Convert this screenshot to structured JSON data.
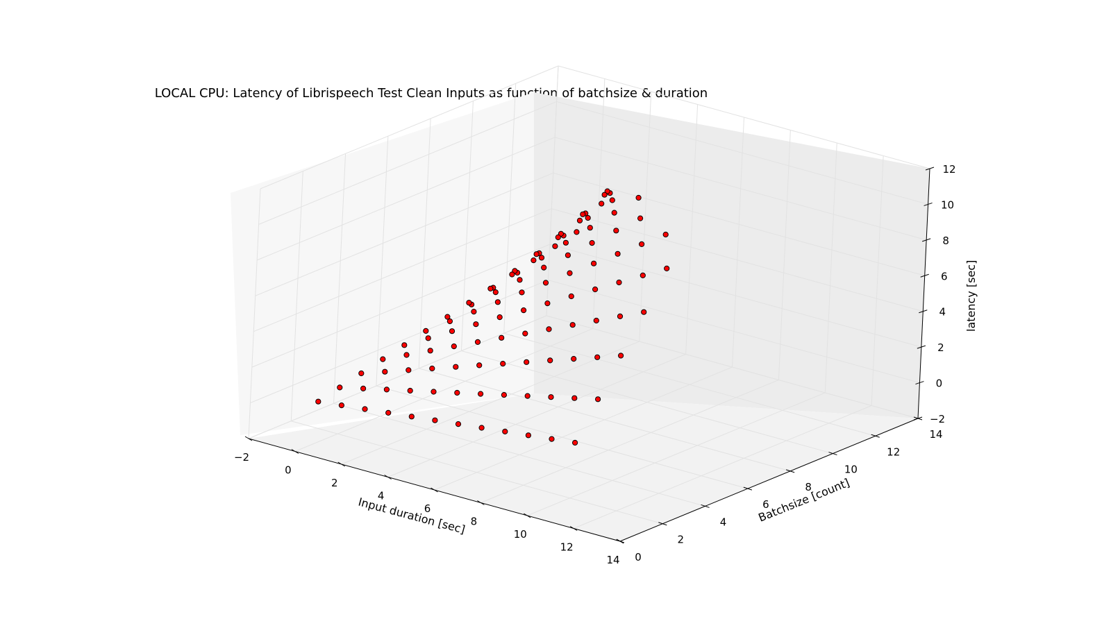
{
  "chart_data": {
    "type": "scatter",
    "projection": "3d",
    "title": "LOCAL CPU: Latency of Librispeech Test Clean Inputs as function of batchsize & duration",
    "xlabel": "Input duration [sec]",
    "ylabel": "Batchsize [count]",
    "zlabel": "latency [sec]",
    "xlim": [
      -2,
      14
    ],
    "ylim": [
      0,
      14
    ],
    "zlim": [
      -2,
      12
    ],
    "xticks": [
      "−2",
      "0",
      "2",
      "4",
      "6",
      "8",
      "10",
      "12",
      "14"
    ],
    "yticks": [
      "0",
      "2",
      "4",
      "6",
      "8",
      "10",
      "12",
      "14"
    ],
    "zticks": [
      "−2",
      "0",
      "2",
      "4",
      "6",
      "8",
      "10",
      "12"
    ],
    "grid": true,
    "marker_color": "#ff0000",
    "marker_edge": "#000000",
    "pane_colors": [
      "#f2f2f2",
      "#ececec",
      "#f7f7f7"
    ],
    "series": [
      {
        "points": [
          [
            0,
            1,
            0.3
          ],
          [
            1,
            1,
            0.45
          ],
          [
            2,
            1,
            0.6
          ],
          [
            3,
            1,
            0.75
          ],
          [
            4,
            1,
            0.9
          ],
          [
            5,
            1,
            1.05
          ],
          [
            6,
            1,
            1.2
          ],
          [
            7,
            1,
            1.35
          ],
          [
            8,
            1,
            1.5
          ],
          [
            9,
            1,
            1.65
          ],
          [
            10,
            1,
            1.8
          ],
          [
            11,
            1,
            1.95
          ],
          [
            0,
            2,
            0.6
          ],
          [
            1,
            2,
            0.9
          ],
          [
            2,
            2,
            1.2
          ],
          [
            3,
            2,
            1.5
          ],
          [
            4,
            2,
            1.8
          ],
          [
            5,
            2,
            2.1
          ],
          [
            6,
            2,
            2.4
          ],
          [
            7,
            2,
            2.7
          ],
          [
            8,
            2,
            3.0
          ],
          [
            9,
            2,
            3.3
          ],
          [
            10,
            2,
            3.6
          ],
          [
            11,
            2,
            3.9
          ],
          [
            0,
            3,
            0.9
          ],
          [
            1,
            3,
            1.35
          ],
          [
            2,
            3,
            1.8
          ],
          [
            3,
            3,
            2.25
          ],
          [
            4,
            3,
            2.7
          ],
          [
            5,
            3,
            3.15
          ],
          [
            6,
            3,
            3.6
          ],
          [
            7,
            3,
            4.05
          ],
          [
            8,
            3,
            4.5
          ],
          [
            9,
            3,
            4.95
          ],
          [
            10,
            3,
            5.4
          ],
          [
            11,
            3,
            5.85
          ],
          [
            0,
            4,
            1.2
          ],
          [
            1,
            4,
            1.8
          ],
          [
            2,
            4,
            2.4
          ],
          [
            3,
            4,
            3.0
          ],
          [
            4,
            4,
            3.6
          ],
          [
            5,
            4,
            4.2
          ],
          [
            6,
            4,
            4.8
          ],
          [
            7,
            4,
            5.4
          ],
          [
            8,
            4,
            6.0
          ],
          [
            9,
            4,
            6.6
          ],
          [
            10,
            4,
            7.2
          ],
          [
            11,
            4,
            7.8
          ],
          [
            0,
            5,
            1.5
          ],
          [
            1,
            5,
            2.25
          ],
          [
            2,
            5,
            3.0
          ],
          [
            3,
            5,
            3.75
          ],
          [
            4,
            5,
            4.5
          ],
          [
            5,
            5,
            5.25
          ],
          [
            6,
            5,
            6.0
          ],
          [
            7,
            5,
            6.75
          ],
          [
            8,
            5,
            7.5
          ],
          [
            9,
            5,
            8.25
          ],
          [
            10,
            5,
            9.0
          ],
          [
            11,
            5,
            9.75
          ],
          [
            0,
            6,
            1.8
          ],
          [
            1,
            6,
            2.7
          ],
          [
            2,
            6,
            3.6
          ],
          [
            3,
            6,
            4.5
          ],
          [
            4,
            6,
            5.4
          ],
          [
            5,
            6,
            6.3
          ],
          [
            6,
            6,
            7.2
          ],
          [
            7,
            6,
            8.1
          ],
          [
            8,
            6,
            9.0
          ],
          [
            9,
            6,
            9.9
          ],
          [
            10,
            6,
            10.8
          ],
          [
            0,
            7,
            2.1
          ],
          [
            1,
            7,
            3.15
          ],
          [
            2,
            7,
            4.2
          ],
          [
            3,
            7,
            5.25
          ],
          [
            4,
            7,
            6.3
          ],
          [
            5,
            7,
            7.35
          ],
          [
            6,
            7,
            8.4
          ],
          [
            7,
            7,
            9.45
          ],
          [
            8,
            7,
            10.5
          ],
          [
            0,
            8,
            2.4
          ],
          [
            1,
            8,
            3.6
          ],
          [
            2,
            8,
            4.8
          ],
          [
            3,
            8,
            6.0
          ],
          [
            4,
            8,
            7.2
          ],
          [
            5,
            8,
            8.4
          ],
          [
            6,
            8,
            9.6
          ],
          [
            7,
            8,
            10.8
          ],
          [
            0,
            9,
            2.7
          ],
          [
            1,
            9,
            4.05
          ],
          [
            2,
            9,
            5.4
          ],
          [
            3,
            9,
            6.75
          ],
          [
            4,
            9,
            8.1
          ],
          [
            5,
            9,
            9.45
          ],
          [
            0,
            10,
            3.0
          ],
          [
            1,
            10,
            4.5
          ],
          [
            2,
            10,
            6.0
          ],
          [
            3,
            10,
            7.5
          ],
          [
            4,
            10,
            9.0
          ],
          [
            0,
            11,
            3.3
          ],
          [
            1,
            11,
            4.95
          ],
          [
            2,
            11,
            6.6
          ],
          [
            3,
            11,
            8.25
          ],
          [
            0,
            12,
            3.6
          ],
          [
            1,
            12,
            5.4
          ],
          [
            2,
            12,
            7.2
          ],
          [
            0,
            13,
            3.9
          ],
          [
            1,
            13,
            5.85
          ]
        ]
      }
    ]
  }
}
